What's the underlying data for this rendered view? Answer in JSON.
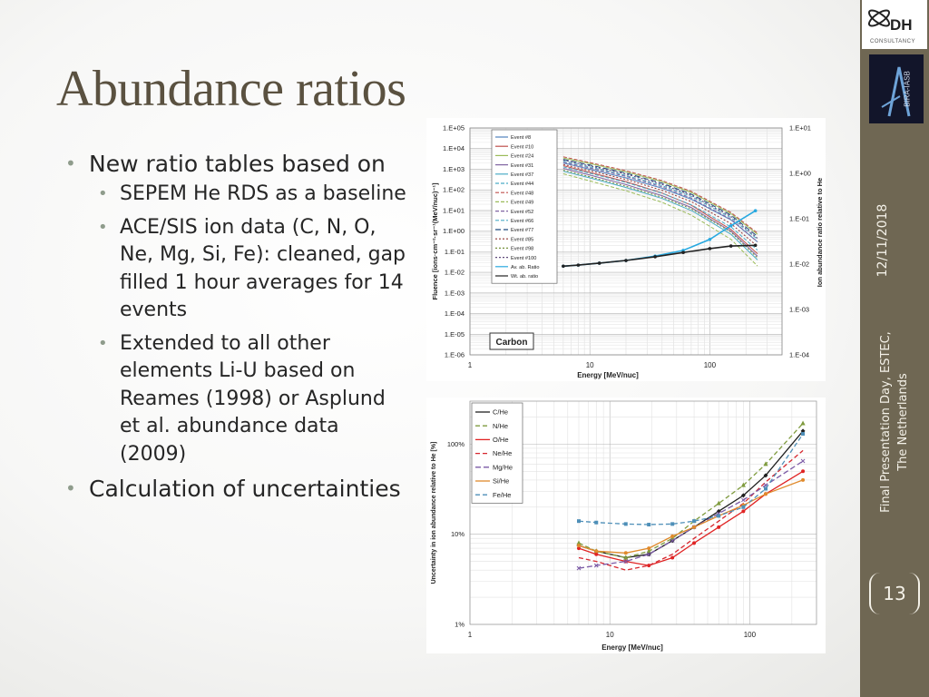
{
  "slide": {
    "title": "Abundance ratios",
    "bullets": [
      {
        "text": "New ratio tables based on",
        "level": 1
      },
      {
        "text": "SEPEM He RDS as a baseline",
        "level": 2
      },
      {
        "text": "ACE/SIS ion data (C, N, O, Ne, Mg, Si, Fe): cleaned, gap filled 1 hour averages for 14 events",
        "level": 2
      },
      {
        "text": "Extended to all other elements Li-U based on Reames (1998) or Asplund et al. abundance data (2009)",
        "level": 2
      },
      {
        "text": "Calculation of uncertainties",
        "level": 1
      }
    ]
  },
  "sidebar": {
    "logo_dh": "DH",
    "logo_dh_sub": "CONSULTANCY",
    "logo_bira": "BIRA-IASB",
    "date": "12/11/2018",
    "event_line1": "Final Presentation Day, ESTEC,",
    "event_line2": "The Netherlands",
    "slide_number": "13"
  },
  "chart_data": [
    {
      "type": "line",
      "xlabel": "Energy [MeV/nuc]",
      "ylabel": "Fluence [ions·cm⁻²·sr⁻¹(MeV/nuc)⁻¹]",
      "y2label": "Ion abundance ratio relative to He",
      "xscale": "log",
      "yscale": "log",
      "y2scale": "log",
      "xlim": [
        1,
        400
      ],
      "ylim": [
        1e-06,
        100000.0
      ],
      "y2lim": [
        0.0001,
        10
      ],
      "xticks": [
        1,
        10,
        100
      ],
      "xtick_labels": [
        "1",
        "10",
        "100"
      ],
      "ytick_labels": [
        "1.E+05",
        "1.E+04",
        "1.E+03",
        "1.E+02",
        "1.E+01",
        "1.E+00",
        "1.E-01",
        "1.E-02",
        "1.E-03",
        "1.E-04",
        "1.E-05",
        "1.E-06"
      ],
      "y2tick_labels": [
        "1.E+01",
        "1.E+00",
        "1.E-01",
        "1.E-02",
        "1.E-03",
        "1.E-04"
      ],
      "grid": true,
      "legend_position": "top-left",
      "annotation": "Carbon",
      "x": [
        6,
        10,
        20,
        40,
        70,
        100,
        150,
        250
      ],
      "series": [
        {
          "name": "Event #8",
          "color": "#4f81bd",
          "dash": "",
          "values": [
            2000,
            1000,
            380,
            120,
            35,
            12,
            3.5,
            0.3
          ]
        },
        {
          "name": "Event #10",
          "color": "#c0504d",
          "dash": "",
          "values": [
            1500,
            700,
            250,
            70,
            18,
            5,
            1.2,
            0.08
          ]
        },
        {
          "name": "Event #24",
          "color": "#9bbb59",
          "dash": "",
          "values": [
            3500,
            1900,
            750,
            250,
            75,
            25,
            7,
            0.7
          ]
        },
        {
          "name": "Event #31",
          "color": "#8064a2",
          "dash": "",
          "values": [
            1100,
            520,
            180,
            52,
            14,
            4,
            1,
            0.06
          ]
        },
        {
          "name": "Event #37",
          "color": "#4bacc6",
          "dash": "",
          "values": [
            800,
            380,
            130,
            38,
            10,
            3,
            0.7,
            0.04
          ]
        },
        {
          "name": "Event #44",
          "color": "#4bacc6",
          "dash": "4,2",
          "values": [
            2500,
            1300,
            500,
            160,
            48,
            16,
            4.5,
            0.4
          ]
        },
        {
          "name": "Event #48",
          "color": "#c0504d",
          "dash": "4,2",
          "values": [
            4000,
            2100,
            850,
            280,
            85,
            28,
            8,
            0.8
          ]
        },
        {
          "name": "Event #49",
          "color": "#9bbb59",
          "dash": "4,2",
          "values": [
            600,
            270,
            90,
            25,
            6,
            1.7,
            0.4,
            0.02
          ]
        },
        {
          "name": "Event #52",
          "color": "#8064a2",
          "dash": "4,2",
          "values": [
            2200,
            1150,
            450,
            140,
            40,
            13,
            3.8,
            0.3
          ]
        },
        {
          "name": "Event #66",
          "color": "#4bacc6",
          "dash": "4,2",
          "values": [
            1300,
            640,
            230,
            68,
            19,
            6,
            1.6,
            0.12
          ]
        },
        {
          "name": "Event #77",
          "color": "#1f497d",
          "dash": "6,3",
          "values": [
            3000,
            1600,
            650,
            210,
            62,
            21,
            6,
            0.55
          ]
        },
        {
          "name": "Event #85",
          "color": "#943634",
          "dash": "2,2",
          "values": [
            1700,
            850,
            320,
            95,
            27,
            8.5,
            2.3,
            0.18
          ]
        },
        {
          "name": "Event #98",
          "color": "#76923c",
          "dash": "2,2",
          "values": [
            900,
            430,
            150,
            44,
            12,
            3.6,
            0.9,
            0.05
          ]
        },
        {
          "name": "Event #100",
          "color": "#5f497a",
          "dash": "2,2",
          "values": [
            2800,
            1450,
            580,
            185,
            55,
            18,
            5.2,
            0.45
          ]
        }
      ],
      "ratio_series": [
        {
          "name": "Av. ab. Ratio",
          "color": "#29a9e0",
          "x": [
            6,
            8,
            12,
            20,
            35,
            60,
            100,
            150,
            240
          ],
          "values": [
            0.009,
            0.0095,
            0.0105,
            0.012,
            0.015,
            0.02,
            0.035,
            0.07,
            0.15
          ]
        },
        {
          "name": "Wt. ab. ratio",
          "color": "#222222",
          "x": [
            6,
            8,
            12,
            20,
            35,
            60,
            100,
            150,
            240
          ],
          "values": [
            0.009,
            0.0095,
            0.0105,
            0.012,
            0.0145,
            0.018,
            0.022,
            0.025,
            0.026
          ]
        }
      ]
    },
    {
      "type": "line",
      "xlabel": "Energy [MeV/nuc]",
      "ylabel": "Uncertainty in ion abundance relative to He [%]",
      "xscale": "log",
      "yscale": "log",
      "xlim": [
        1,
        300
      ],
      "ylim": [
        1,
        300
      ],
      "xticks": [
        1,
        10,
        100
      ],
      "xtick_labels": [
        "1",
        "10",
        "100"
      ],
      "yticks": [
        1,
        10,
        100
      ],
      "ytick_labels": [
        "1%",
        "10%",
        "100%"
      ],
      "grid": true,
      "legend_position": "top-left",
      "x": [
        6,
        8,
        13,
        19,
        28,
        40,
        60,
        90,
        130,
        240
      ],
      "series": [
        {
          "name": "C/He",
          "color": "#1f1f1f",
          "dash": "",
          "marker": "diamond",
          "values": [
            7.5,
            6.5,
            5.5,
            6,
            8.5,
            12,
            18,
            27,
            45,
            140
          ]
        },
        {
          "name": "N/He",
          "color": "#7f9b3e",
          "dash": "5,3",
          "marker": "triangle",
          "values": [
            8,
            6.5,
            5.5,
            6.5,
            9,
            14,
            22,
            35,
            60,
            170
          ]
        },
        {
          "name": "O/He",
          "color": "#e02424",
          "dash": "",
          "marker": "circle",
          "values": [
            7,
            6,
            5,
            4.5,
            5.5,
            8,
            12,
            18,
            28,
            50
          ]
        },
        {
          "name": "Ne/He",
          "color": "#d6262e",
          "dash": "5,3",
          "marker": "none",
          "values": [
            5.5,
            5,
            4,
            4.5,
            6,
            9,
            14,
            22,
            38,
            85
          ]
        },
        {
          "name": "Mg/He",
          "color": "#7b5aa6",
          "dash": "6,3",
          "marker": "x",
          "values": [
            4.2,
            4.5,
            5,
            6,
            8.5,
            12,
            17,
            24,
            35,
            65
          ]
        },
        {
          "name": "Si/He",
          "color": "#e08a2c",
          "dash": "",
          "marker": "circle",
          "values": [
            7.5,
            6.5,
            6.2,
            7,
            9.5,
            12,
            16,
            21,
            28,
            40
          ]
        },
        {
          "name": "Fe/He",
          "color": "#4e8fb8",
          "dash": "5,3",
          "marker": "square",
          "values": [
            14,
            13.5,
            13,
            12.8,
            13,
            14,
            16,
            20,
            32,
            130
          ]
        }
      ]
    }
  ]
}
